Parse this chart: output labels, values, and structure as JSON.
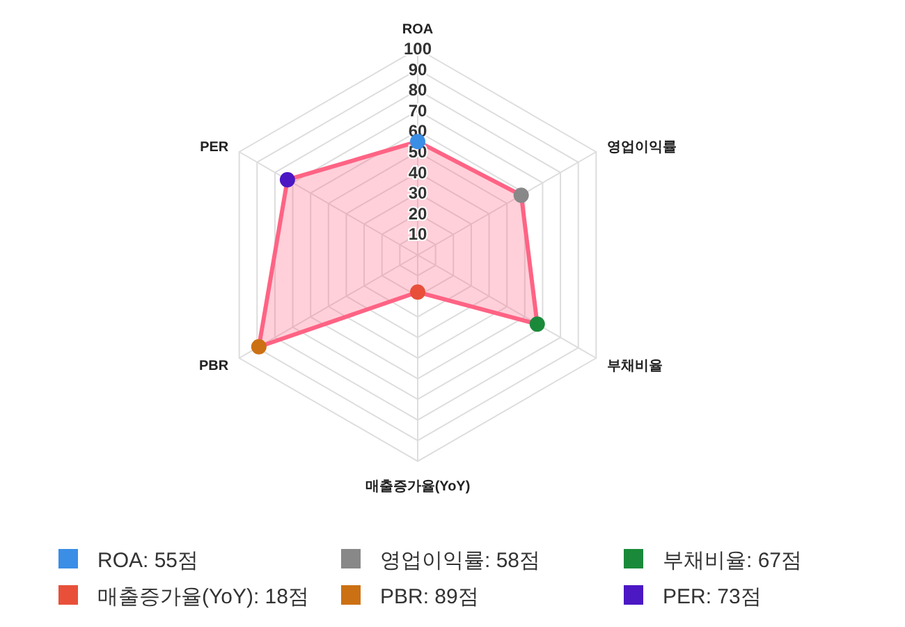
{
  "chart_data": {
    "type": "radar",
    "categories": [
      "ROA",
      "영업이익률",
      "부채비율",
      "매출증가율(YoY)",
      "PBR",
      "PER"
    ],
    "series": [
      {
        "color": "#ff6384",
        "values": [
          55,
          58,
          67,
          18,
          89,
          73
        ],
        "colors": [
          "#3a8ee6",
          "#888888",
          "#1a8a3a",
          "#e8503a",
          "#cc7014",
          "#4b18c4"
        ]
      }
    ],
    "annotations": [
      "ROA: 55점",
      "영업이익률: 58점",
      "부채비율: 67점",
      "매출증가율(YoY): 18점",
      "PBR: 89점",
      "PER: 73점"
    ],
    "ylim": [
      0,
      100
    ],
    "yticks": [
      10,
      20,
      30,
      40,
      50,
      60,
      70,
      80,
      90,
      100
    ],
    "grid": true,
    "marker": "circle",
    "line_style": "solid"
  }
}
